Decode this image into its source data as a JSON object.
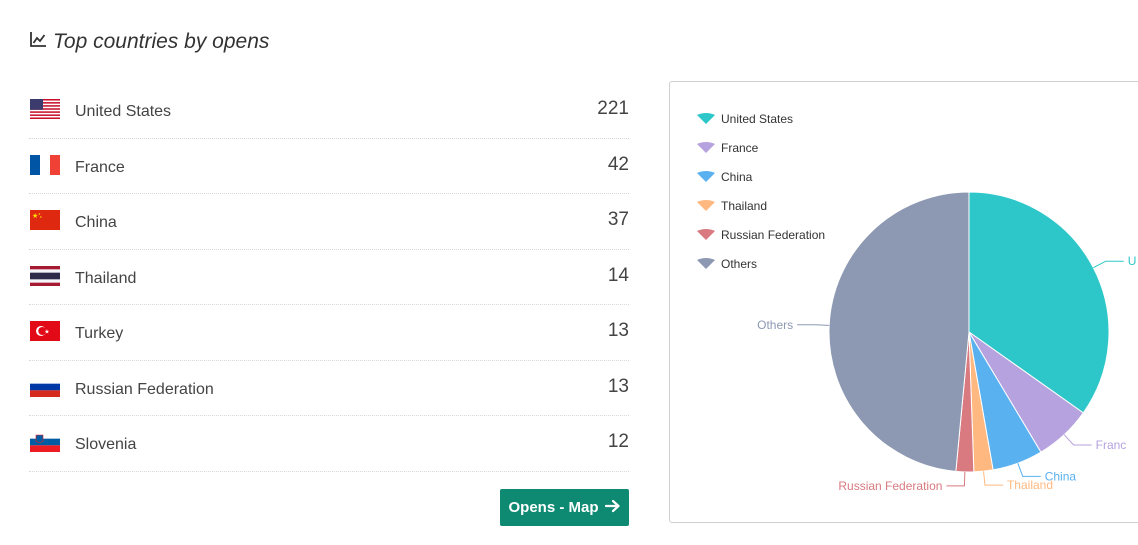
{
  "header": {
    "title": "Top countries by opens",
    "icon": "line-chart-icon"
  },
  "countries": [
    {
      "name": "United States",
      "count": "221",
      "flag": "us-flag-icon"
    },
    {
      "name": "France",
      "count": "42",
      "flag": "fr-flag-icon"
    },
    {
      "name": "China",
      "count": "37",
      "flag": "cn-flag-icon"
    },
    {
      "name": "Thailand",
      "count": "14",
      "flag": "th-flag-icon"
    },
    {
      "name": "Turkey",
      "count": "13",
      "flag": "tr-flag-icon"
    },
    {
      "name": "Russian Federation",
      "count": "13",
      "flag": "ru-flag-icon"
    },
    {
      "name": "Slovenia",
      "count": "12",
      "flag": "si-flag-icon"
    }
  ],
  "button": {
    "label": "Opens - Map",
    "icon": "arrow-right-icon"
  },
  "chart_data": {
    "type": "pie",
    "legend_position": "top-left",
    "series": [
      {
        "name": "United States",
        "value": 221,
        "color": "#2ec7c9",
        "label": "U"
      },
      {
        "name": "France",
        "value": 42,
        "color": "#b6a2de",
        "label": "Franc"
      },
      {
        "name": "China",
        "value": 37,
        "color": "#5ab1ef",
        "label": "China"
      },
      {
        "name": "Thailand",
        "value": 14,
        "color": "#ffb980",
        "label": "Thailand"
      },
      {
        "name": "Russian Federation",
        "value": 13,
        "color": "#d87a80",
        "label": "Russian Federation"
      },
      {
        "name": "Others",
        "value": 308,
        "color": "#8d98b3",
        "label": "Others"
      }
    ]
  }
}
